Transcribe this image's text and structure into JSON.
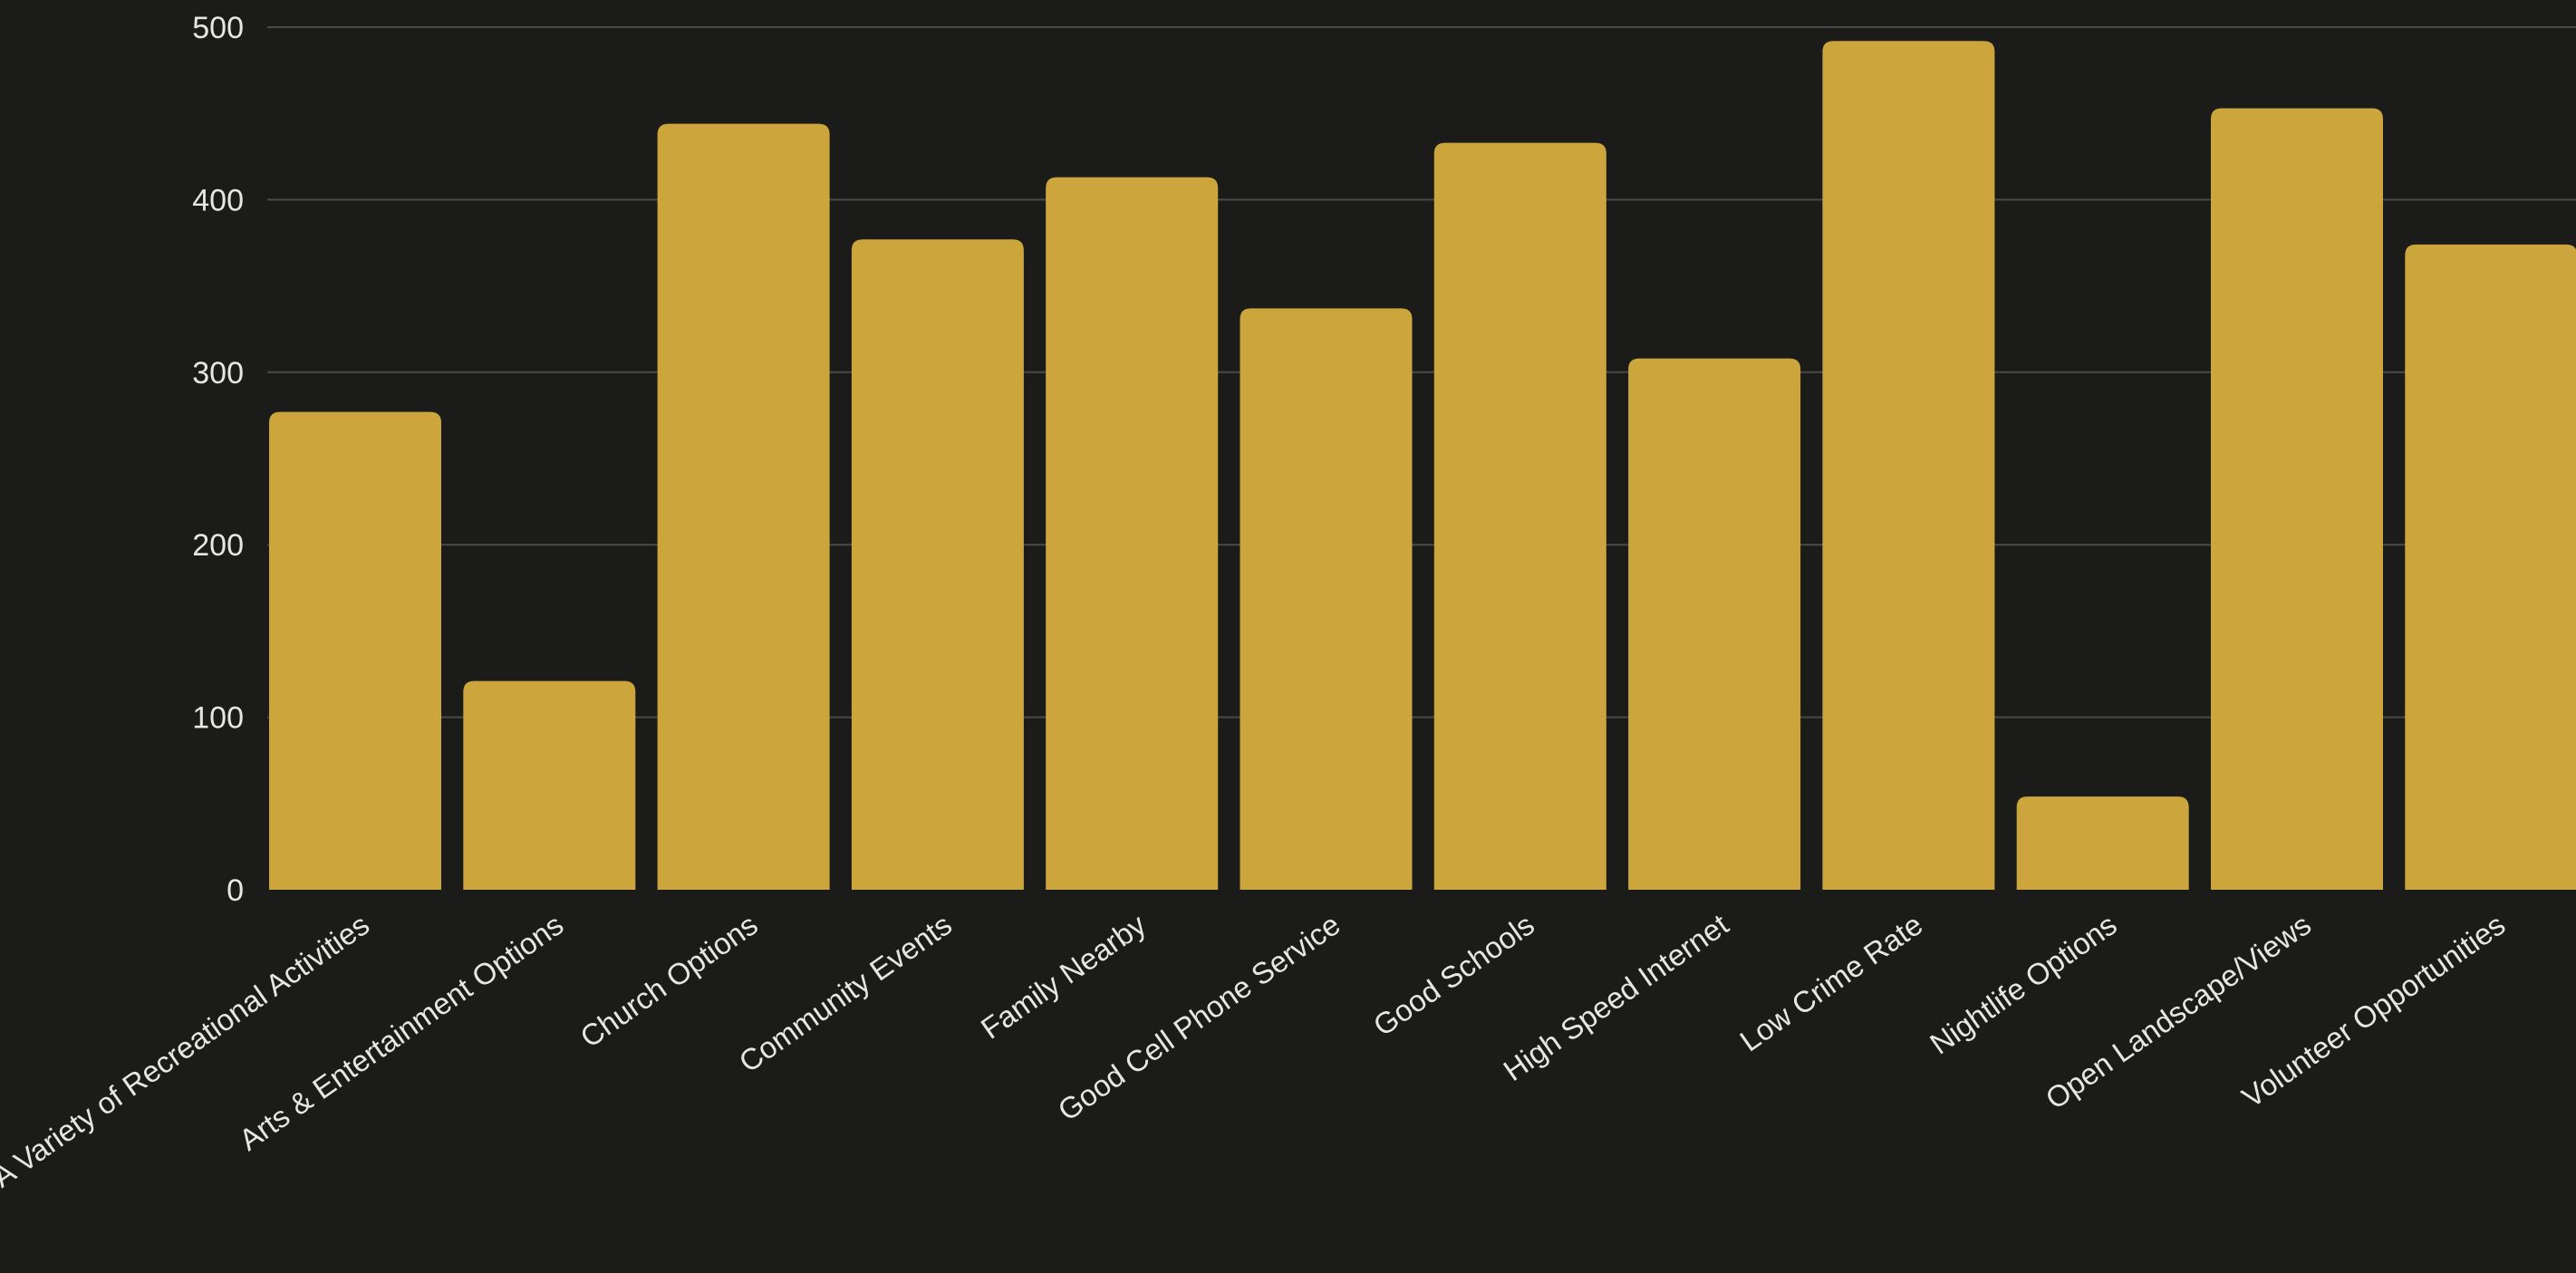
{
  "colors": {
    "background": "#1b1b1a",
    "bar": "#cca63c",
    "grid": "#4a4a48",
    "text": "#e6e6e6"
  },
  "chart_data": {
    "type": "bar",
    "title": "",
    "xlabel": "",
    "ylabel": "",
    "ylim": [
      0,
      500
    ],
    "yticks": [
      0,
      100,
      200,
      300,
      400,
      500
    ],
    "grid": true,
    "legend": "none",
    "categories": [
      "A Variety of Recreational Activities",
      "Arts & Entertainment Options",
      "Church Options",
      "Community Events",
      "Family Nearby",
      "Good Cell Phone Service",
      "Good Schools",
      "High Speed Internet",
      "Low Crime Rate",
      "Nightlife Options",
      "Open Landscape/Views",
      "Volunteer Opportunities"
    ],
    "values": [
      277,
      121,
      444,
      377,
      413,
      337,
      433,
      308,
      492,
      54,
      453,
      374
    ]
  }
}
